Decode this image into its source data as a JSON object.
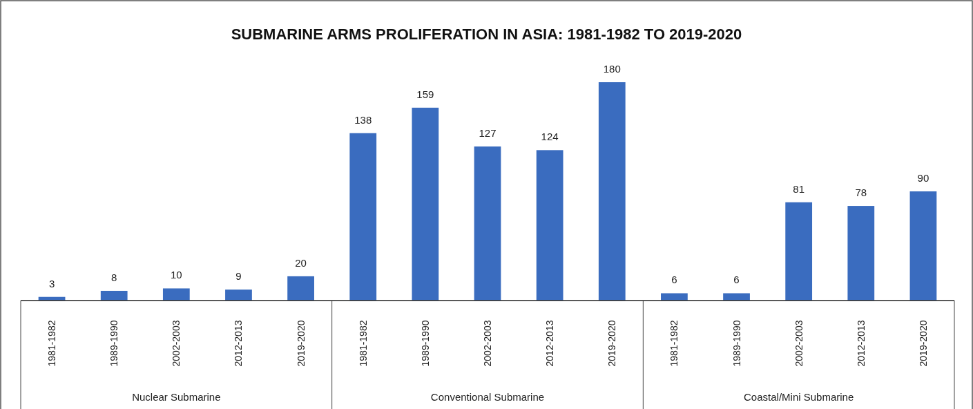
{
  "chart_data": {
    "type": "bar",
    "title": "SUBMARINE ARMS PROLIFERATION IN ASIA: 1981-1982 TO 2019-2020",
    "categories": [
      "1981-1982",
      "1989-1990",
      "2002-2003",
      "2012-2013",
      "2019-2020",
      "1981-1982",
      "1989-1990",
      "2002-2003",
      "2012-2013",
      "2019-2020",
      "1981-1982",
      "1989-1990",
      "2002-2003",
      "2012-2013",
      "2019-2020"
    ],
    "values": [
      3,
      8,
      10,
      9,
      20,
      138,
      159,
      127,
      124,
      180,
      6,
      6,
      81,
      78,
      90
    ],
    "color": "#3a6cbf",
    "data_labels": true,
    "annotations": [
      "Nuclear Submarine",
      "Conventional Submarine",
      "Coastal/Mini Submarine"
    ]
  }
}
